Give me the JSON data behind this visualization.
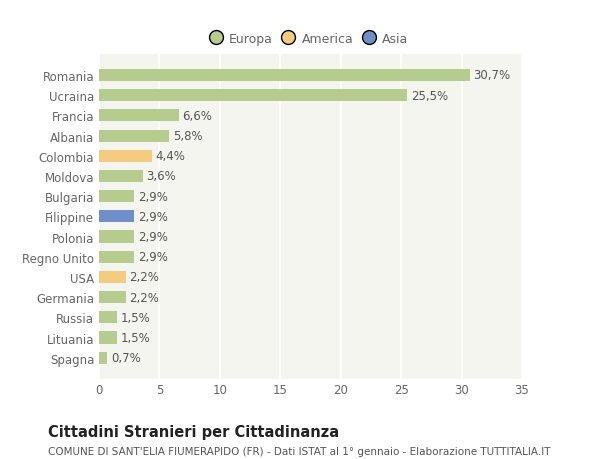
{
  "categories": [
    "Romania",
    "Ucraina",
    "Francia",
    "Albania",
    "Colombia",
    "Moldova",
    "Bulgaria",
    "Filippine",
    "Polonia",
    "Regno Unito",
    "USA",
    "Germania",
    "Russia",
    "Lituania",
    "Spagna"
  ],
  "values": [
    30.7,
    25.5,
    6.6,
    5.8,
    4.4,
    3.6,
    2.9,
    2.9,
    2.9,
    2.9,
    2.2,
    2.2,
    1.5,
    1.5,
    0.7
  ],
  "labels": [
    "30,7%",
    "25,5%",
    "6,6%",
    "5,8%",
    "4,4%",
    "3,6%",
    "2,9%",
    "2,9%",
    "2,9%",
    "2,9%",
    "2,2%",
    "2,2%",
    "1,5%",
    "1,5%",
    "0,7%"
  ],
  "colors": [
    "#b5cc8e",
    "#b5cc8e",
    "#b5cc8e",
    "#b5cc8e",
    "#f5cc7f",
    "#b5cc8e",
    "#b5cc8e",
    "#6e8fc7",
    "#b5cc8e",
    "#b5cc8e",
    "#f5cc7f",
    "#b5cc8e",
    "#b5cc8e",
    "#b5cc8e",
    "#b5cc8e"
  ],
  "legend_labels": [
    "Europa",
    "America",
    "Asia"
  ],
  "legend_colors": [
    "#b5cc8e",
    "#f5cc7f",
    "#6e8fc7"
  ],
  "xlim": [
    0,
    35
  ],
  "xticks": [
    0,
    5,
    10,
    15,
    20,
    25,
    30,
    35
  ],
  "title": "Cittadini Stranieri per Cittadinanza",
  "subtitle": "COMUNE DI SANT'ELIA FIUMERAPIDO (FR) - Dati ISTAT al 1° gennaio - Elaborazione TUTTITALIA.IT",
  "background_color": "#ffffff",
  "plot_background_color": "#f5f5f0",
  "grid_color": "#ffffff",
  "bar_height": 0.6,
  "label_fontsize": 8.5,
  "tick_fontsize": 8.5,
  "title_fontsize": 10.5,
  "subtitle_fontsize": 7.5,
  "label_color": "#555555",
  "tick_color": "#666666"
}
